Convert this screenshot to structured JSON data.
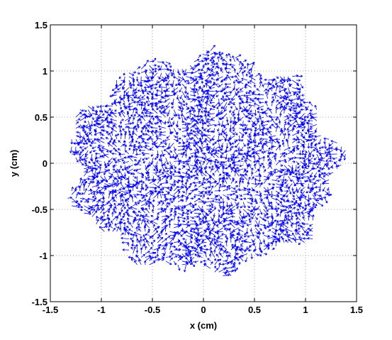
{
  "chart_data": {
    "type": "quiver",
    "xlabel": "x (cm)",
    "ylabel": "y (cm)",
    "xlim": [
      -1.5,
      1.5
    ],
    "ylim": [
      -1.5,
      1.5
    ],
    "x_ticks": [
      -1.5,
      -1,
      -0.5,
      0,
      0.5,
      1,
      1.5
    ],
    "y_ticks": [
      -1.5,
      -1,
      -0.5,
      0,
      0.5,
      1,
      1.5
    ],
    "x_tick_labels": [
      "-1.5",
      "-1",
      "-0.5",
      "0",
      "0.5",
      "1",
      "1.5"
    ],
    "y_tick_labels": [
      "-1.5",
      "-1",
      "-0.5",
      "0",
      "0.5",
      "1",
      "1.5"
    ],
    "grid": true,
    "domain": {
      "shape": "disc",
      "center": [
        0,
        0
      ],
      "radius_x": 1.3,
      "radius_y": 1.15
    },
    "grid_spacing": 0.04,
    "vector_scale": 0.06
  },
  "colors": {
    "vectors": "#0000ff",
    "grid": "#888888",
    "axes": "#000000",
    "background": "#ffffff"
  }
}
